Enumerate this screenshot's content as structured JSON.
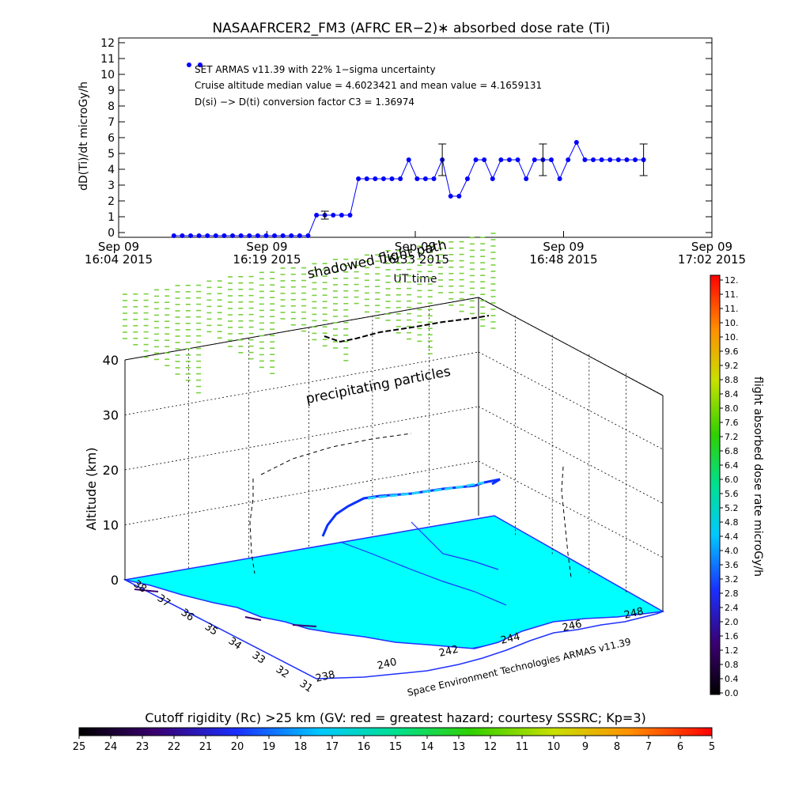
{
  "title": "NASAAFRCER2_FM3 (AFRC ER−2)∗ absorbed dose rate (Ti)",
  "annotations": [
    "SET ARMAS v11.39 with 22% 1−sigma uncertainty",
    "Cruise altitude median value = 4.6023421 and mean value = 4.1659131",
    "D(si) −> D(ti) conversion factor C3 = 1.36974"
  ],
  "top_chart": {
    "ylabel": "dD(Ti)/dt microGy/h",
    "xlabel": "UT time",
    "yticks": [
      "0",
      "1",
      "2",
      "3",
      "4",
      "5",
      "6",
      "7",
      "8",
      "9",
      "10",
      "11",
      "12"
    ],
    "xticks": [
      {
        "l1": "Sep 09",
        "l2": "16:04 2015"
      },
      {
        "l1": "Sep 09",
        "l2": "16:19 2015"
      },
      {
        "l1": "Sep 09",
        "l2": "16:33 2015"
      },
      {
        "l1": "Sep 09",
        "l2": "16:48 2015"
      },
      {
        "l1": "Sep 09",
        "l2": "17:02 2015"
      }
    ]
  },
  "chart_data": [
    {
      "type": "line",
      "x_units": "minutes after 16:04 UT",
      "xlim": [
        0,
        58
      ],
      "ylim": [
        0,
        12
      ],
      "y": [
        -0.2,
        -0.2,
        -0.2,
        -0.2,
        -0.2,
        -0.2,
        -0.2,
        -0.2,
        -0.2,
        -0.2,
        -0.2,
        -0.2,
        -0.2,
        -0.2,
        -0.2,
        -0.2,
        -0.2,
        1.1,
        1.1,
        1.1,
        1.1,
        1.1,
        3.4,
        3.4,
        3.4,
        3.4,
        3.4,
        3.4,
        4.6,
        3.4,
        3.4,
        3.4,
        4.6,
        2.3,
        2.3,
        3.4,
        4.6,
        4.6,
        3.4,
        4.6,
        4.6,
        4.6,
        3.4,
        4.6,
        4.6,
        4.6,
        3.4,
        4.6,
        5.7,
        4.6,
        4.6,
        4.6,
        4.6,
        4.6,
        4.6,
        4.6,
        4.6
      ],
      "x_start": 5.4,
      "x_step": 0.82,
      "error_bars": [
        {
          "index": 18,
          "y": 1.1,
          "err": 0.25
        },
        {
          "index": 32,
          "y": 4.6,
          "err": 1.0
        },
        {
          "index": 44,
          "y": 4.6,
          "err": 1.0
        },
        {
          "index": 56,
          "y": 4.6,
          "err": 1.0
        }
      ],
      "legend_markers_y": 10.6
    },
    {
      "type": "scatter",
      "title": "",
      "zlabel": "Altitude (km)",
      "zticks": [
        "0",
        "10",
        "20",
        "30",
        "40"
      ],
      "lat_ticks": [
        "38",
        "37",
        "36",
        "35",
        "34",
        "33",
        "32",
        "31"
      ],
      "lon_ticks": [
        "238",
        "240",
        "242",
        "244",
        "246",
        "248"
      ],
      "labels": {
        "shadowed": "shadowed flight path",
        "precip": "precipitating particles",
        "credit": "Space Environment Technologies ARMAS v11.39"
      }
    }
  ],
  "colorbar_right": {
    "label": "flight absorbed dose rate microGy/h",
    "ticks": [
      "0.0",
      "0.4",
      "0.8",
      "1.2",
      "1.6",
      "2.0",
      "2.4",
      "2.8",
      "3.2",
      "3.6",
      "4.0",
      "4.4",
      "4.8",
      "5.2",
      "5.6",
      "6.0",
      "6.4",
      "6.8",
      "7.2",
      "7.6",
      "8.0",
      "8.4",
      "8.8",
      "9.2",
      "9.6",
      "10.",
      "10.",
      "11.",
      "11.",
      "12."
    ]
  },
  "colorbar_bottom": {
    "title": "Cutoff rigidity (Rc) >25 km (GV: red = greatest hazard; courtesy SSSRC; Kp=3)",
    "ticks": [
      "25",
      "24",
      "23",
      "22",
      "21",
      "20",
      "19",
      "18",
      "17",
      "16",
      "15",
      "14",
      "13",
      "12",
      "11",
      "10",
      "9",
      "8",
      "7",
      "6",
      "5"
    ]
  }
}
